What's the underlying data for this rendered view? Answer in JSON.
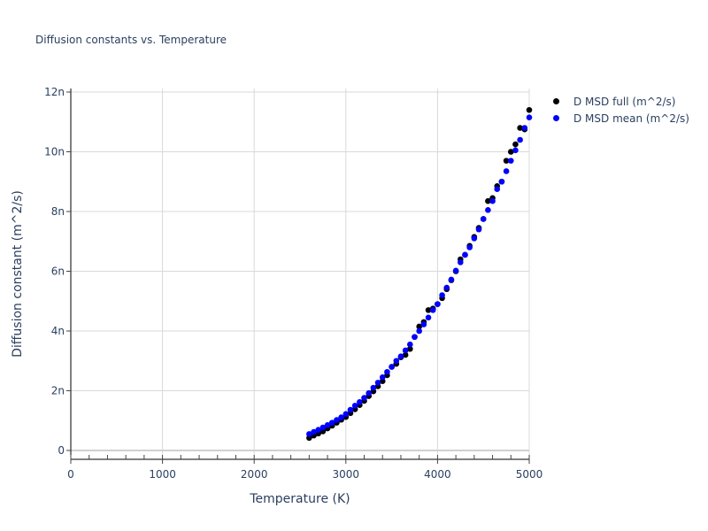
{
  "chart_data": {
    "type": "scatter",
    "title": "Diffusion constants vs. Temperature",
    "xlabel": "Temperature (K)",
    "ylabel": "Diffusion constant (m^2/s)",
    "xlim": [
      0,
      5000
    ],
    "ylim": [
      -3e-10,
      1.2e-08
    ],
    "x_ticks": [
      "0",
      "1000",
      "2000",
      "3000",
      "4000",
      "5000"
    ],
    "y_ticks": [
      "0",
      "2n",
      "4n",
      "6n",
      "8n",
      "10n",
      "12n"
    ],
    "grid": true,
    "legend_position": "top-right outside",
    "x": [
      2600,
      2650,
      2700,
      2750,
      2800,
      2850,
      2900,
      2950,
      3000,
      3050,
      3100,
      3150,
      3200,
      3250,
      3300,
      3350,
      3400,
      3450,
      3500,
      3550,
      3600,
      3650,
      3700,
      3750,
      3800,
      3850,
      3900,
      3950,
      4000,
      4050,
      4100,
      4150,
      4200,
      4250,
      4300,
      4350,
      4400,
      4450,
      4500,
      4550,
      4600,
      4650,
      4700,
      4750,
      4800,
      4850,
      4900,
      4950,
      5000
    ],
    "series": [
      {
        "name": "D MSD full (m^2/s)",
        "color": "#000000",
        "values_n": [
          0.42,
          0.5,
          0.57,
          0.64,
          0.74,
          0.83,
          0.93,
          1.03,
          1.12,
          1.25,
          1.38,
          1.52,
          1.66,
          1.82,
          1.98,
          2.15,
          2.32,
          2.52,
          2.8,
          2.9,
          3.12,
          3.2,
          3.4,
          3.8,
          4.15,
          4.3,
          4.7,
          4.75,
          4.9,
          5.1,
          5.4,
          5.7,
          6.0,
          6.4,
          6.55,
          6.85,
          7.15,
          7.45,
          7.75,
          8.35,
          8.45,
          8.85,
          9.0,
          9.7,
          10.0,
          10.25,
          10.8,
          10.75,
          11.4
        ]
      },
      {
        "name": "D MSD mean (m^2/s)",
        "color": "#0000ff",
        "values_n": [
          0.55,
          0.62,
          0.69,
          0.77,
          0.85,
          0.93,
          1.02,
          1.11,
          1.22,
          1.36,
          1.5,
          1.62,
          1.76,
          1.92,
          2.1,
          2.27,
          2.45,
          2.63,
          2.8,
          3.0,
          3.15,
          3.35,
          3.55,
          3.8,
          4.0,
          4.22,
          4.45,
          4.7,
          4.9,
          5.2,
          5.45,
          5.72,
          6.02,
          6.3,
          6.55,
          6.8,
          7.1,
          7.4,
          7.75,
          8.05,
          8.35,
          8.75,
          9.0,
          9.35,
          9.7,
          10.05,
          10.4,
          10.8,
          11.15
        ]
      }
    ]
  },
  "legend": {
    "items": [
      {
        "label": "D MSD full (m^2/s)",
        "color": "#000000"
      },
      {
        "label": "D MSD mean (m^2/s)",
        "color": "#0000ff"
      }
    ]
  }
}
